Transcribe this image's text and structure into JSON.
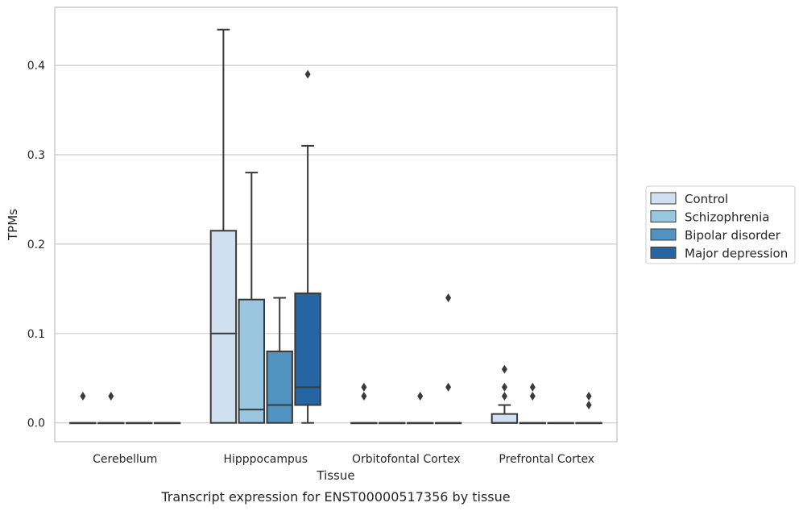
{
  "caption": "Transcript expression for ENST00000517356 by tissue",
  "chart_data": {
    "type": "box",
    "xlabel": "Tissue",
    "ylabel": "TPMs",
    "ylim": [
      -0.021,
      0.465
    ],
    "yticks": [
      "0.0",
      "0.1",
      "0.2",
      "0.3",
      "0.4"
    ],
    "grid": "horizontal",
    "legend_position": "right",
    "categories": [
      "Cerebellum",
      "Hipppocampus",
      "Orbitofontal Cortex",
      "Prefrontal Cortex"
    ],
    "series": [
      {
        "name": "Control",
        "color": "#d0e0f0",
        "boxes": [
          {
            "q1": 0,
            "median": 0,
            "q3": 0,
            "whisker_low": 0,
            "whisker_high": 0,
            "outliers": [
              0.03
            ]
          },
          {
            "q1": 0,
            "median": 0.1,
            "q3": 0.215,
            "whisker_low": 0,
            "whisker_high": 0.44,
            "outliers": []
          },
          {
            "q1": 0,
            "median": 0,
            "q3": 0,
            "whisker_low": 0,
            "whisker_high": 0,
            "outliers": [
              0.03,
              0.04
            ]
          },
          {
            "q1": 0,
            "median": 0,
            "q3": 0.01,
            "whisker_low": 0,
            "whisker_high": 0.02,
            "outliers": [
              0.03,
              0.04,
              0.06
            ]
          }
        ]
      },
      {
        "name": "Schizophrenia",
        "color": "#9ac6df",
        "boxes": [
          {
            "q1": 0,
            "median": 0,
            "q3": 0,
            "whisker_low": 0,
            "whisker_high": 0,
            "outliers": [
              0.03
            ]
          },
          {
            "q1": 0,
            "median": 0.015,
            "q3": 0.138,
            "whisker_low": 0,
            "whisker_high": 0.28,
            "outliers": []
          },
          {
            "q1": 0,
            "median": 0,
            "q3": 0,
            "whisker_low": 0,
            "whisker_high": 0,
            "outliers": []
          },
          {
            "q1": 0,
            "median": 0,
            "q3": 0,
            "whisker_low": 0,
            "whisker_high": 0,
            "outliers": [
              0.03,
              0.04
            ]
          }
        ]
      },
      {
        "name": "Bipolar disorder",
        "color": "#5093c1",
        "boxes": [
          {
            "q1": 0,
            "median": 0,
            "q3": 0,
            "whisker_low": 0,
            "whisker_high": 0,
            "outliers": []
          },
          {
            "q1": 0,
            "median": 0.02,
            "q3": 0.08,
            "whisker_low": 0,
            "whisker_high": 0.14,
            "outliers": []
          },
          {
            "q1": 0,
            "median": 0,
            "q3": 0,
            "whisker_low": 0,
            "whisker_high": 0,
            "outliers": [
              0.03
            ]
          },
          {
            "q1": 0,
            "median": 0,
            "q3": 0,
            "whisker_low": 0,
            "whisker_high": 0,
            "outliers": []
          }
        ]
      },
      {
        "name": "Major depression",
        "color": "#2565a3",
        "boxes": [
          {
            "q1": 0,
            "median": 0,
            "q3": 0,
            "whisker_low": 0,
            "whisker_high": 0,
            "outliers": []
          },
          {
            "q1": 0.02,
            "median": 0.04,
            "q3": 0.145,
            "whisker_low": 0,
            "whisker_high": 0.31,
            "outliers": [
              0.39
            ]
          },
          {
            "q1": 0,
            "median": 0,
            "q3": 0,
            "whisker_low": 0,
            "whisker_high": 0,
            "outliers": [
              0.04,
              0.14
            ]
          },
          {
            "q1": 0,
            "median": 0,
            "q3": 0,
            "whisker_low": 0,
            "whisker_high": 0,
            "outliers": [
              0.02,
              0.03
            ]
          }
        ]
      }
    ]
  }
}
